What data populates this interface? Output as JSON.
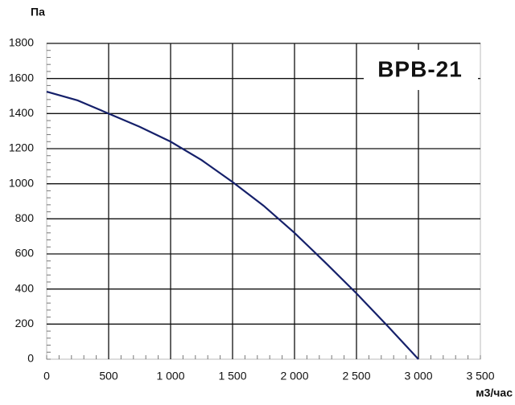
{
  "chart_data": {
    "type": "line",
    "title": "BPB-21",
    "y_label": "Па",
    "x_label": "м3/час",
    "x": [
      0,
      250,
      500,
      750,
      1000,
      1250,
      1500,
      1750,
      2000,
      2250,
      2500,
      2750,
      3000
    ],
    "series": [
      {
        "color": "#15206a",
        "values": [
          1525,
          1475,
          1400,
          1325,
          1240,
          1135,
          1010,
          875,
          720,
          550,
          375,
          190,
          0
        ]
      }
    ],
    "xlim": [
      0,
      3500
    ],
    "xticks": [
      0,
      500,
      {
        "value": 1000,
        "label": "1 000"
      },
      {
        "value": 1500,
        "label": "1 500"
      },
      {
        "value": 2000,
        "label": "2 000"
      },
      {
        "value": 2500,
        "label": "2 500"
      },
      {
        "value": 3000,
        "label": "3 000"
      },
      {
        "value": 3500,
        "label": "3 500"
      }
    ],
    "ylim": [
      0,
      1800
    ],
    "yticks": [
      0,
      200,
      400,
      600,
      800,
      1000,
      1200,
      1400,
      1600,
      1800
    ],
    "grid": true
  }
}
